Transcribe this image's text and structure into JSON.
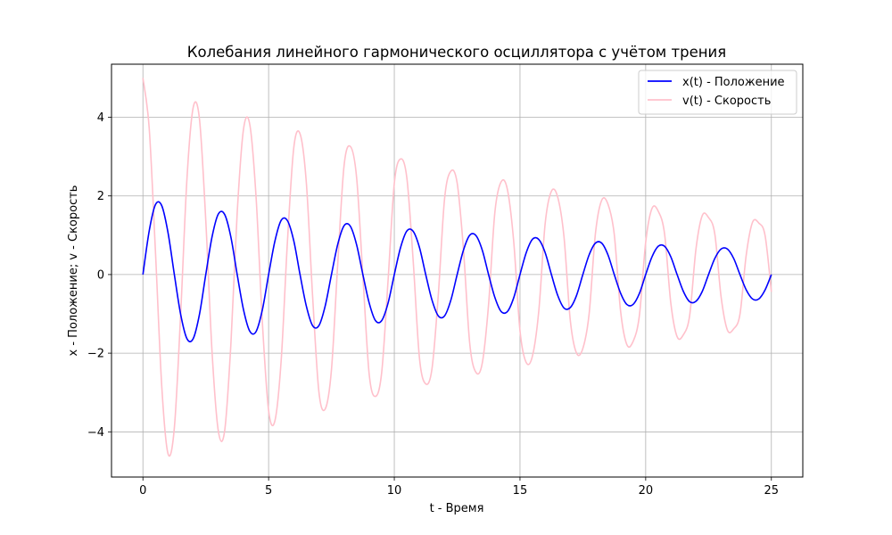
{
  "chart_data": {
    "type": "line",
    "title": "Колебания линейного гармонического осциллятора с учётом трения",
    "xlabel": "t - Время",
    "ylabel": "x - Положение; v - Скорость",
    "xlim": [
      -1.25,
      26.25
    ],
    "ylim": [
      -5.15,
      5.35
    ],
    "xticks": [
      0,
      5,
      10,
      15,
      20,
      25
    ],
    "xtick_labels": [
      "0",
      "5",
      "10",
      "15",
      "20",
      "25"
    ],
    "yticks": [
      -4,
      -2,
      0,
      2,
      4
    ],
    "ytick_labels": [
      "−4",
      "−2",
      "0",
      "2",
      "4"
    ],
    "grid": true,
    "legend_position": "top-right",
    "series": [
      {
        "name": "x(t) - Положение",
        "color": "#0000ff",
        "x": [
          0,
          0.25,
          0.5,
          0.75,
          1.0,
          1.25,
          1.5,
          1.75,
          2.0,
          2.25,
          2.5,
          2.75,
          3.0,
          3.25,
          3.5,
          3.75,
          4.0,
          4.25,
          4.5,
          4.75,
          5.0,
          5.25,
          5.5,
          5.75,
          6.0,
          6.25,
          6.5,
          6.75,
          7.0,
          7.25,
          7.5,
          7.75,
          8.0,
          8.25,
          8.5,
          8.75,
          9.0,
          9.25,
          9.5,
          9.75,
          10.0,
          10.25,
          10.5,
          10.75,
          11.0,
          11.25,
          11.5,
          11.75,
          12.0,
          12.25,
          12.5,
          12.75,
          13.0,
          13.25,
          13.5,
          13.75,
          14.0,
          14.25,
          14.5,
          14.75,
          15.0,
          15.25,
          15.5,
          15.75,
          16.0,
          16.25,
          16.5,
          16.75,
          17.0,
          17.25,
          17.5,
          17.75,
          18.0,
          18.25,
          18.5,
          18.75,
          19.0,
          19.25,
          19.5,
          19.75,
          20.0,
          20.25,
          20.5,
          20.75,
          21.0,
          21.25,
          21.5,
          21.75,
          22.0,
          22.25,
          22.5,
          22.75,
          23.0,
          23.25,
          23.5,
          23.75,
          24.0,
          24.25,
          24.5,
          24.75,
          25.0
        ],
        "y": [
          0.0,
          1.11,
          1.78,
          1.75,
          1.06,
          0.0,
          -1.01,
          -1.63,
          -1.63,
          -1.01,
          0.0,
          0.96,
          1.54,
          1.53,
          0.95,
          0.0,
          -0.89,
          -1.44,
          -1.45,
          -0.9,
          0.0,
          0.85,
          1.38,
          1.37,
          0.86,
          0.0,
          -0.8,
          -1.3,
          -1.3,
          -0.8,
          0.0,
          0.77,
          1.24,
          1.23,
          0.76,
          0.0,
          -0.72,
          -1.17,
          -1.17,
          -0.73,
          0.0,
          0.69,
          1.11,
          1.1,
          0.69,
          0.0,
          -0.65,
          -1.05,
          -1.05,
          -0.65,
          0.0,
          0.62,
          1.0,
          0.99,
          0.62,
          0.0,
          -0.58,
          -0.94,
          -0.94,
          -0.59,
          0.0,
          0.56,
          0.9,
          0.89,
          0.56,
          0.0,
          -0.53,
          -0.85,
          -0.84,
          -0.53,
          0.0,
          0.5,
          0.8,
          0.8,
          0.5,
          0.0,
          -0.47,
          -0.76,
          -0.76,
          -0.48,
          0.0,
          0.45,
          0.72,
          0.72,
          0.45,
          0.0,
          -0.43,
          -0.69,
          -0.68,
          -0.43,
          0.0,
          0.41,
          0.65,
          0.65,
          0.41,
          0.0,
          -0.39,
          -0.62,
          -0.62,
          -0.39,
          0.0
        ]
      },
      {
        "name": "v(t) - Скорость",
        "color": "#ffc0cb",
        "x": [
          0,
          0.25,
          0.5,
          0.75,
          1.0,
          1.25,
          1.5,
          1.75,
          2.0,
          2.25,
          2.5,
          2.75,
          3.0,
          3.25,
          3.5,
          3.75,
          4.0,
          4.25,
          4.5,
          4.75,
          5.0,
          5.25,
          5.5,
          5.75,
          6.0,
          6.25,
          6.5,
          6.75,
          7.0,
          7.25,
          7.5,
          7.75,
          8.0,
          8.25,
          8.5,
          8.75,
          9.0,
          9.25,
          9.5,
          9.75,
          10.0,
          10.25,
          10.5,
          10.75,
          11.0,
          11.25,
          11.5,
          11.75,
          12.0,
          12.25,
          12.5,
          12.75,
          13.0,
          13.25,
          13.5,
          13.75,
          14.0,
          14.25,
          14.5,
          14.75,
          15.0,
          15.25,
          15.5,
          15.75,
          16.0,
          16.25,
          16.5,
          16.75,
          17.0,
          17.25,
          17.5,
          17.75,
          18.0,
          18.25,
          18.5,
          18.75,
          19.0,
          19.25,
          19.5,
          19.75,
          20.0,
          20.25,
          20.5,
          20.75,
          21.0,
          21.25,
          21.5,
          21.75,
          22.0,
          22.25,
          22.5,
          22.75,
          23.0,
          23.25,
          23.5,
          23.75,
          24.0,
          24.25,
          24.5,
          24.75,
          25.0
        ],
        "y": [
          5.0,
          3.72,
          0.56,
          -2.85,
          -4.56,
          -3.9,
          -1.02,
          2.42,
          4.25,
          3.95,
          1.38,
          -1.97,
          -3.98,
          -3.98,
          -1.76,
          1.57,
          3.69,
          3.82,
          1.98,
          -1.2,
          -3.46,
          -3.72,
          -2.18,
          0.85,
          3.22,
          3.58,
          2.34,
          -0.55,
          -2.98,
          -3.42,
          -2.42,
          0.28,
          2.76,
          3.26,
          2.47,
          -0.04,
          -2.53,
          -3.1,
          -2.48,
          -0.17,
          2.32,
          2.94,
          2.45,
          0.36,
          -2.12,
          -2.78,
          -2.39,
          -0.52,
          1.93,
          2.63,
          2.33,
          0.65,
          -1.75,
          -2.49,
          -2.25,
          -0.76,
          1.58,
          2.36,
          2.16,
          0.84,
          -1.43,
          -2.24,
          -2.06,
          -0.91,
          1.29,
          2.12,
          1.97,
          0.96,
          -1.16,
          -2.0,
          -1.88,
          -1.0,
          1.04,
          1.89,
          1.79,
          1.02,
          -0.92,
          -1.78,
          -1.7,
          -1.04,
          0.82,
          1.68,
          1.61,
          1.04,
          -0.73,
          -1.58,
          -1.53,
          -1.04,
          0.65,
          1.5,
          1.45,
          1.03,
          -0.57,
          -1.41,
          -1.38,
          -1.01,
          0.5,
          1.33,
          1.31,
          0.99,
          -0.44
        ]
      }
    ]
  }
}
